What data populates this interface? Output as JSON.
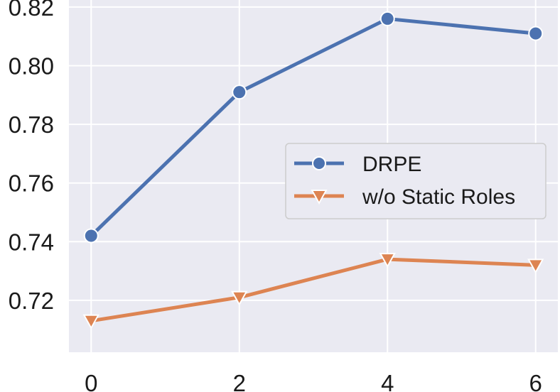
{
  "chart_data": {
    "type": "line",
    "x": [
      0,
      2,
      4,
      6
    ],
    "xlim": [
      -0.3,
      6.3
    ],
    "ylim": [
      0.7023,
      0.8224
    ],
    "xticks": [
      "0",
      "2",
      "4",
      "6"
    ],
    "yticks": [
      "0.72",
      "0.74",
      "0.76",
      "0.78",
      "0.80",
      "0.82"
    ],
    "grid": true,
    "legend_position": "center-right",
    "series": [
      {
        "name": "DRPE",
        "values": [
          0.742,
          0.791,
          0.816,
          0.811
        ],
        "color": "#4c72b0",
        "marker": "circle"
      },
      {
        "name": "w/o Static Roles",
        "values": [
          0.713,
          0.721,
          0.734,
          0.732
        ],
        "color": "#dd8452",
        "marker": "triangle-down"
      }
    ]
  }
}
